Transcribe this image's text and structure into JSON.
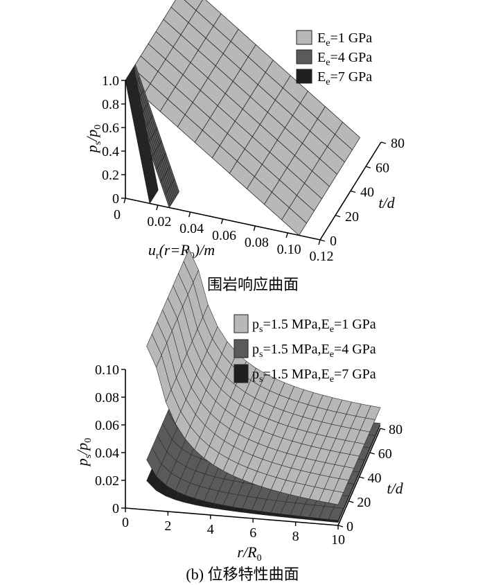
{
  "chart_data": [
    {
      "panel": "a",
      "type": "surface",
      "caption": "(a) 围岩响应曲面",
      "xlabel": "u_r(r=R_0)/m",
      "ylabel": "p_s/p_0",
      "zlabel": "t/d",
      "x_ticks": [
        "0",
        "0.02",
        "0.04",
        "0.06",
        "0.08",
        "0.10",
        "0.12"
      ],
      "y_ticks": [
        "0",
        "0.2",
        "0.4",
        "0.6",
        "0.8",
        "1.0"
      ],
      "z_ticks": [
        "0",
        "20",
        "40",
        "60",
        "80"
      ],
      "xlim": [
        0,
        0.12
      ],
      "ylim": [
        0,
        1.0
      ],
      "zlim": [
        0,
        80
      ],
      "legend_position": "top-right",
      "series": [
        {
          "name": "E_e=1 GPa",
          "color": "#b8b8b8",
          "x": [
            0,
            0.107
          ],
          "y": [
            1.0,
            0
          ]
        },
        {
          "name": "E_e=4 GPa",
          "color": "#5a5a5a",
          "x": [
            0,
            0.027
          ],
          "y": [
            1.0,
            0
          ]
        },
        {
          "name": "E_e=7 GPa",
          "color": "#1f1f1f",
          "x": [
            0,
            0.015
          ],
          "y": [
            1.0,
            0
          ]
        }
      ]
    },
    {
      "panel": "b",
      "type": "surface",
      "caption": "(b) 位移特性曲面",
      "xlabel": "r/R_0",
      "ylabel": "p_s/p_0",
      "zlabel": "t/d",
      "x_ticks": [
        "0",
        "2",
        "4",
        "6",
        "8",
        "10"
      ],
      "y_ticks": [
        "0",
        "0.02",
        "0.04",
        "0.06",
        "0.08",
        "0.10"
      ],
      "z_ticks": [
        "0",
        "20",
        "40",
        "60",
        "80"
      ],
      "xlim": [
        0,
        10
      ],
      "ylim": [
        0,
        0.1
      ],
      "zlim": [
        0,
        80
      ],
      "legend_position": "top-right",
      "series": [
        {
          "name": "p_s=1.5 MPa,E_e=1 GPa",
          "color": "#b8b8b8",
          "x": [
            1,
            2,
            3,
            4,
            6,
            8,
            10
          ],
          "y": [
            0.15,
            0.075,
            0.05,
            0.0375,
            0.025,
            0.019,
            0.015
          ]
        },
        {
          "name": "p_s=1.5 MPa,E_e=4 GPa",
          "color": "#5a5a5a",
          "x": [
            1,
            2,
            3,
            4,
            6,
            8,
            10
          ],
          "y": [
            0.036,
            0.018,
            0.012,
            0.009,
            0.006,
            0.0045,
            0.0036
          ]
        },
        {
          "name": "p_s=1.5 MPa,E_e=7 GPa",
          "color": "#1f1f1f",
          "x": [
            1,
            2,
            3,
            4,
            6,
            8,
            10
          ],
          "y": [
            0.021,
            0.0105,
            0.007,
            0.0053,
            0.0035,
            0.0026,
            0.0021
          ]
        }
      ]
    }
  ]
}
